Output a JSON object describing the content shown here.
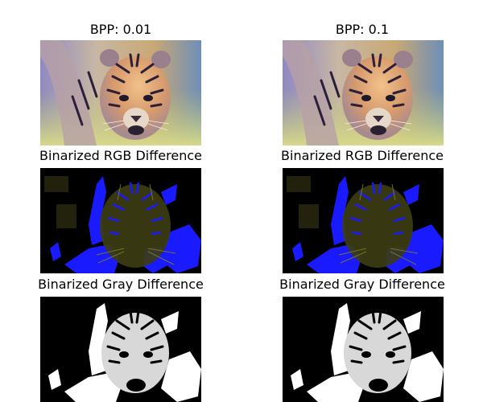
{
  "columns": [
    {
      "bpp_title": "BPP: 0.01",
      "rgb_title": "Binarized RGB Difference",
      "gray_title": "Binarized Gray Difference"
    },
    {
      "bpp_title": "BPP: 0.1",
      "rgb_title": "Binarized RGB Difference",
      "gray_title": "Binarized Gray Difference"
    }
  ],
  "colors": {
    "rgb_diff_blue": "#1a1aff",
    "rgb_diff_olive": "#5a5a18",
    "gray_diff_white": "#ffffff",
    "background_black": "#000000"
  }
}
